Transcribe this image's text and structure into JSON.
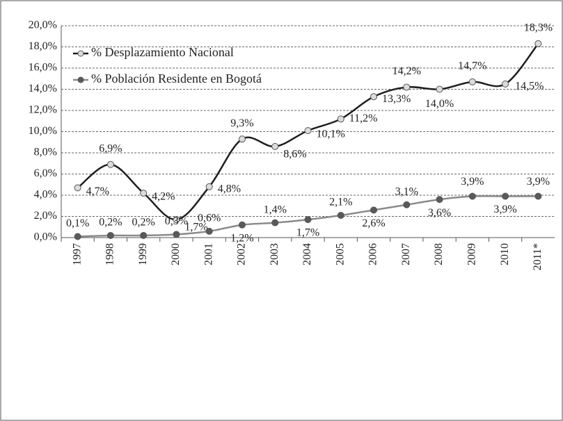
{
  "chart_data": {
    "type": "line",
    "categories": [
      "1997",
      "1998",
      "1999",
      "2000",
      "2001",
      "2002",
      "2003",
      "2004",
      "2005",
      "2006",
      "2007",
      "2008",
      "2009",
      "2010",
      "2011*"
    ],
    "series": [
      {
        "name": "% Desplazamiento Nacional",
        "color": "#1e1e1e",
        "marker_color": "#dcdcdc",
        "values": [
          4.7,
          6.9,
          4.2,
          1.7,
          4.8,
          9.3,
          8.6,
          10.1,
          11.2,
          13.3,
          14.2,
          14.0,
          14.7,
          14.5,
          18.3
        ],
        "value_labels": [
          "4,7%",
          "6,9%",
          "4,2%",
          "1,7%",
          "4,8%",
          "9,3%",
          "8,6%",
          "10,1%",
          "11,2%",
          "13,3%",
          "14,2%",
          "14,0%",
          "14,7%",
          "14,5%",
          "18,3%"
        ]
      },
      {
        "name": "% Población Residente en Bogotá",
        "color": "#8a8a8a",
        "marker_color": "#5a5a5a",
        "values": [
          0.1,
          0.2,
          0.2,
          0.3,
          0.6,
          1.2,
          1.4,
          1.7,
          2.1,
          2.6,
          3.1,
          3.6,
          3.9,
          3.9,
          3.9
        ],
        "value_labels": [
          "0,1%",
          "0,2%",
          "0,2%",
          "0,3%",
          "0,6%",
          "1,2%",
          "1,4%",
          "1,7%",
          "2,1%",
          "2,6%",
          "3,1%",
          "3,6%",
          "3,9%",
          "3,9%",
          "3,9%"
        ]
      }
    ],
    "ylim": [
      0,
      20
    ],
    "yticks": [
      {
        "value": 0,
        "label": "0,0%"
      },
      {
        "value": 2,
        "label": "2,0%"
      },
      {
        "value": 4,
        "label": "4,0%"
      },
      {
        "value": 6,
        "label": "6,0%"
      },
      {
        "value": 8,
        "label": "8,0%"
      },
      {
        "value": 10,
        "label": "10,0%"
      },
      {
        "value": 12,
        "label": "12,0%"
      },
      {
        "value": 14,
        "label": "14,0%"
      },
      {
        "value": 16,
        "label": "16,0%"
      },
      {
        "value": 18,
        "label": "18,0%"
      },
      {
        "value": 20,
        "label": "20,0%"
      }
    ],
    "grid": true,
    "legend": "upper left"
  }
}
